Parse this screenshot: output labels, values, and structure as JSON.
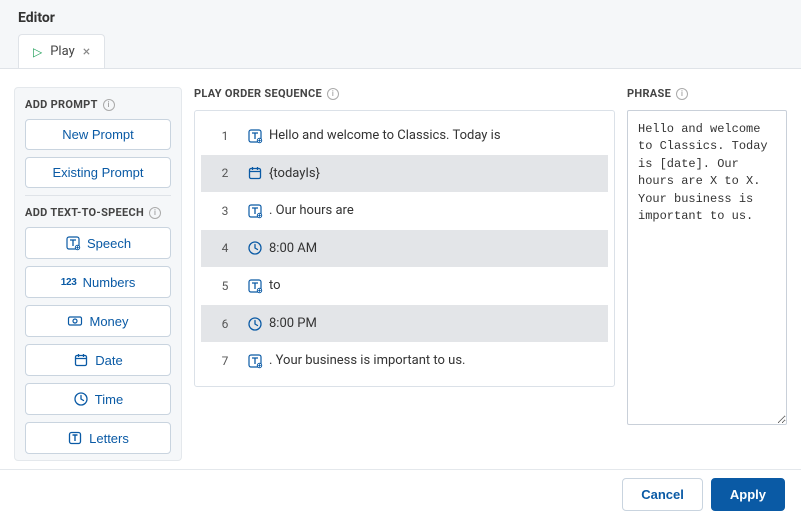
{
  "colors": {
    "accent": "#0a5aa5",
    "play_green": "#22a05a",
    "header_bg": "#f5f7f9",
    "border": "#dfe3e8",
    "row_alt": "#e3e5e8"
  },
  "header": {
    "title": "Editor",
    "tab": {
      "label": "Play"
    }
  },
  "left": {
    "prompt_title": "ADD PROMPT",
    "new_prompt": "New Prompt",
    "existing_prompt": "Existing Prompt",
    "tts_title": "ADD TEXT-TO-SPEECH",
    "speech": "Speech",
    "numbers": "Numbers",
    "money": "Money",
    "date": "Date",
    "time": "Time",
    "letters": "Letters"
  },
  "sequence": {
    "title": "PLAY ORDER SEQUENCE",
    "rows": [
      {
        "num": "1",
        "icon": "text-icon",
        "text": "Hello and welcome to Classics. Today is"
      },
      {
        "num": "2",
        "icon": "date-icon",
        "text": "{todayIs}"
      },
      {
        "num": "3",
        "icon": "text-icon",
        "text": ". Our hours are"
      },
      {
        "num": "4",
        "icon": "clock-icon",
        "text": "8:00 AM"
      },
      {
        "num": "5",
        "icon": "text-icon",
        "text": "to"
      },
      {
        "num": "6",
        "icon": "clock-icon",
        "text": "8:00 PM"
      },
      {
        "num": "7",
        "icon": "text-icon",
        "text": ". Your business is important to us."
      }
    ]
  },
  "phrase": {
    "title": "PHRASE",
    "text": "Hello and welcome to Classics. Today is [date]. Our hours are X to X. Your business is important to us."
  },
  "footer": {
    "cancel": "Cancel",
    "apply": "Apply"
  }
}
